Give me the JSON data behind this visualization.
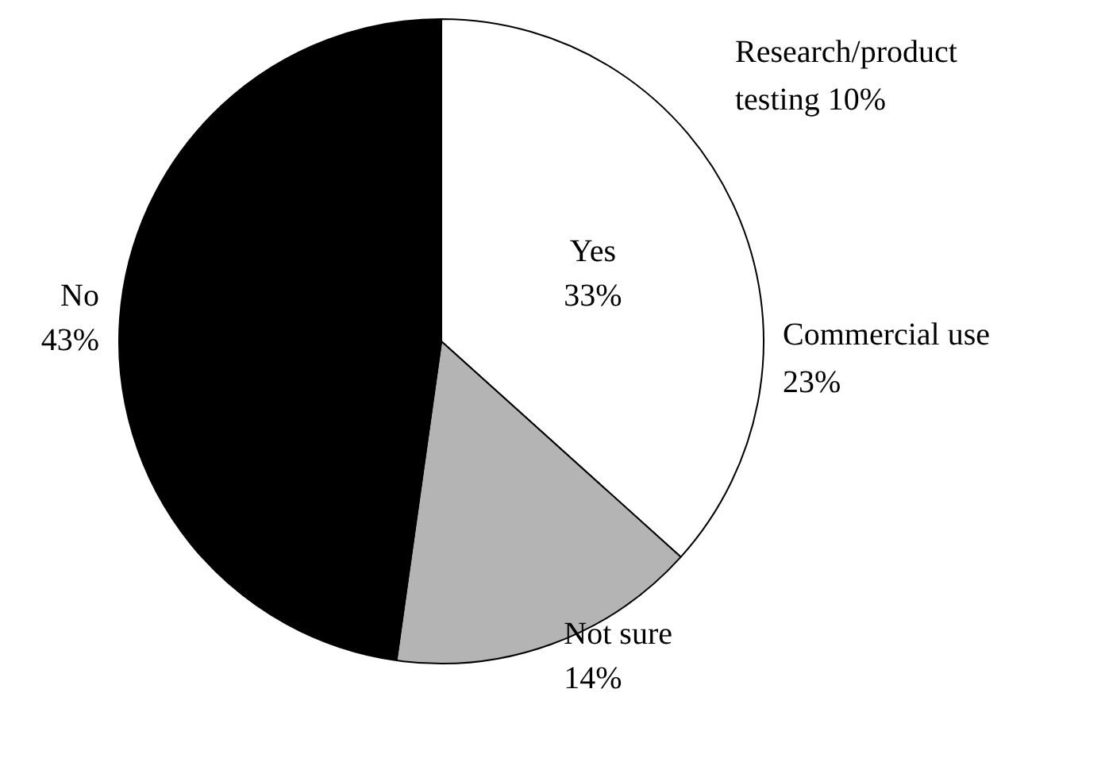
{
  "chart_data": {
    "type": "pie",
    "categories": [
      "Yes",
      "Not sure",
      "No"
    ],
    "values": [
      33,
      14,
      43
    ],
    "colors": [
      "#ffffff",
      "#b4b4b4",
      "#000000"
    ],
    "value_labels": [
      "33%",
      "14%",
      "43%"
    ],
    "legend": false,
    "annotations": [
      "Research/product testing 10%",
      "Commercial use 23%"
    ]
  }
}
